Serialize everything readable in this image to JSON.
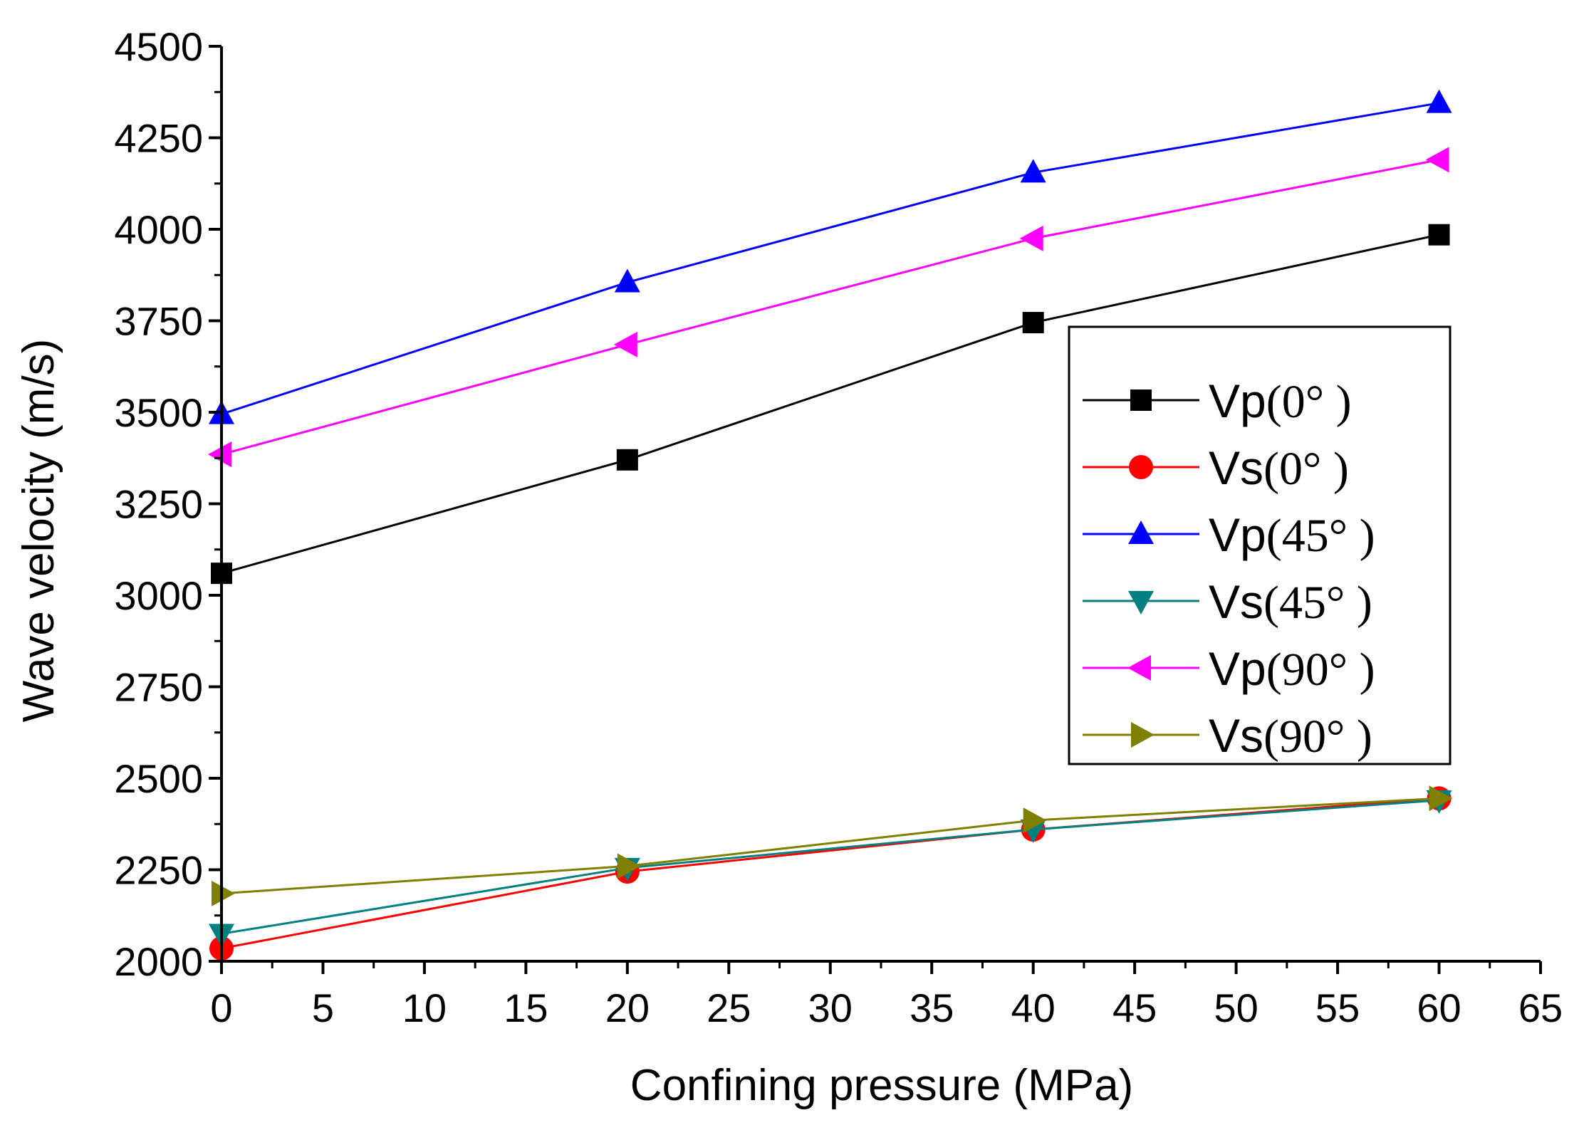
{
  "chart_data": {
    "type": "line",
    "title": "",
    "xlabel": "Confining pressure (MPa)",
    "ylabel": "Wave velocity (m/s)",
    "xlim": [
      0,
      65
    ],
    "ylim": [
      2000,
      4500
    ],
    "x_ticks": [
      "0",
      "5",
      "10",
      "15",
      "20",
      "25",
      "30",
      "35",
      "40",
      "45",
      "50",
      "55",
      "60",
      "65"
    ],
    "y_ticks": [
      "2000",
      "2250",
      "2500",
      "2750",
      "3000",
      "3250",
      "3500",
      "3750",
      "4000",
      "4250",
      "4500"
    ],
    "x": [
      0,
      20,
      40,
      60
    ],
    "legend_position": "center-right",
    "series": [
      {
        "name": "Vp",
        "angle": "(0°  )",
        "label": "Vp(0°  )",
        "color": "#000000",
        "marker": "square",
        "values": [
          3060,
          3370,
          3745,
          3985
        ]
      },
      {
        "name": "Vs",
        "angle": "(0°  )",
        "label": "Vs(0°  )",
        "color": "#ff0000",
        "marker": "circle",
        "values": [
          2035,
          2245,
          2360,
          2445
        ]
      },
      {
        "name": "Vp",
        "angle": "(45°  )",
        "label": "Vp(45°  )",
        "color": "#0000ff",
        "marker": "triangle-up",
        "values": [
          3495,
          3855,
          4155,
          4345
        ]
      },
      {
        "name": "Vs",
        "angle": "(45°  )",
        "label": "Vs(45°  )",
        "color": "#008080",
        "marker": "triangle-down",
        "values": [
          2075,
          2255,
          2360,
          2440
        ]
      },
      {
        "name": "Vp",
        "angle": "(90°  )",
        "label": "Vp(90°  )",
        "color": "#ff00ff",
        "marker": "triangle-left",
        "values": [
          3385,
          3685,
          3975,
          4190
        ]
      },
      {
        "name": "Vs",
        "angle": "(90°  )",
        "label": "Vs(90°  )",
        "color": "#808000",
        "marker": "triangle-right",
        "values": [
          2185,
          2260,
          2385,
          2445
        ]
      }
    ]
  }
}
